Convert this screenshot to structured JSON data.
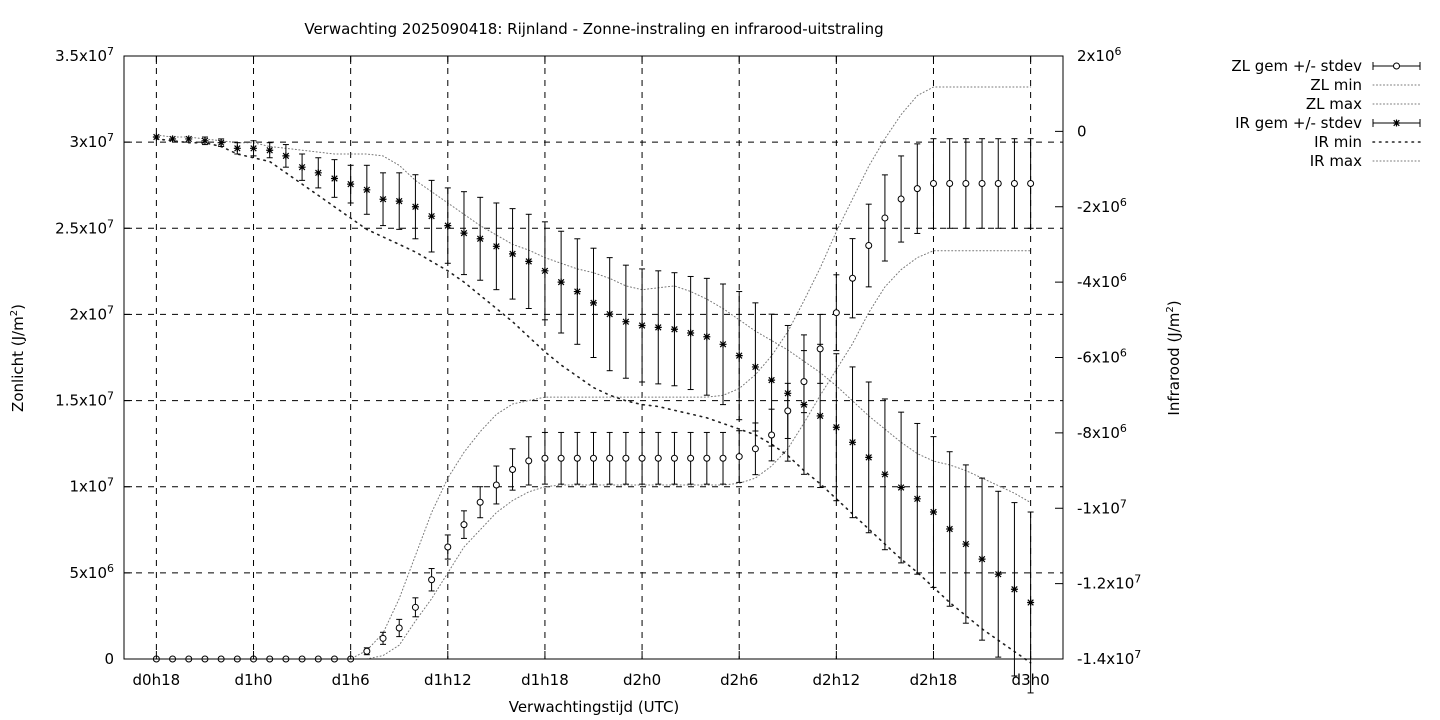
{
  "chart_data": {
    "type": "scatter",
    "title": "Verwachting 2025090418: Rijnland - Zonne-instraling en infrarood-uitstraling",
    "xlabel": "Verwachtingstijd (UTC)",
    "ylabel_left_text": "Zonlicht (J/m",
    "ylabel_left_sup": "2",
    "ylabel_left_close": ")",
    "ylabel_right_text": "Infrarood (J/m",
    "ylabel_right_sup": "2",
    "ylabel_right_close": ")",
    "x_range_hours": [
      -2,
      56
    ],
    "x_ticks": [
      {
        "value": 0,
        "label": "d0h18"
      },
      {
        "value": 6,
        "label": "d1h0"
      },
      {
        "value": 12,
        "label": "d1h6"
      },
      {
        "value": 18,
        "label": "d1h12"
      },
      {
        "value": 24,
        "label": "d1h18"
      },
      {
        "value": 30,
        "label": "d2h0"
      },
      {
        "value": 36,
        "label": "d2h6"
      },
      {
        "value": 42,
        "label": "d2h12"
      },
      {
        "value": 48,
        "label": "d2h18"
      },
      {
        "value": 54,
        "label": "d3h0"
      }
    ],
    "y_left_range": [
      0,
      35000000
    ],
    "y_left_ticks": [
      {
        "value": 0,
        "base": "0",
        "exp": ""
      },
      {
        "value": 5000000,
        "base": "5x10",
        "exp": "6"
      },
      {
        "value": 10000000,
        "base": "1x10",
        "exp": "7"
      },
      {
        "value": 15000000,
        "base": "1.5x10",
        "exp": "7"
      },
      {
        "value": 20000000,
        "base": "2x10",
        "exp": "7"
      },
      {
        "value": 25000000,
        "base": "2.5x10",
        "exp": "7"
      },
      {
        "value": 30000000,
        "base": "3x10",
        "exp": "7"
      },
      {
        "value": 35000000,
        "base": "3.5x10",
        "exp": "7"
      }
    ],
    "y_right_range": [
      -14000000,
      2000000
    ],
    "y_right_ticks": [
      {
        "value": -14000000,
        "base": "-1.4x10",
        "exp": "7"
      },
      {
        "value": -12000000,
        "base": "-1.2x10",
        "exp": "7"
      },
      {
        "value": -10000000,
        "base": "-1x10",
        "exp": "7"
      },
      {
        "value": -8000000,
        "base": "-8x10",
        "exp": "6"
      },
      {
        "value": -6000000,
        "base": "-6x10",
        "exp": "6"
      },
      {
        "value": -4000000,
        "base": "-4x10",
        "exp": "6"
      },
      {
        "value": -2000000,
        "base": "-2x10",
        "exp": "6"
      },
      {
        "value": 0,
        "base": "0",
        "exp": ""
      },
      {
        "value": 2000000,
        "base": "2x10",
        "exp": "6"
      }
    ],
    "grid": true,
    "legend_position": "outside-right",
    "legend": [
      {
        "label": "ZL gem +/- stdev",
        "style": "errorbar-circle"
      },
      {
        "label": "ZL min",
        "style": "dotted-fine"
      },
      {
        "label": "ZL max",
        "style": "dotted-fine"
      },
      {
        "label": "IR gem +/- stdev",
        "style": "errorbar-star"
      },
      {
        "label": "IR min",
        "style": "dotted-coarse"
      },
      {
        "label": "IR max",
        "style": "dotted-fine"
      }
    ],
    "x": [
      0,
      1,
      2,
      3,
      4,
      5,
      6,
      7,
      8,
      9,
      10,
      11,
      12,
      13,
      14,
      15,
      16,
      17,
      18,
      19,
      20,
      21,
      22,
      23,
      24,
      25,
      26,
      27,
      28,
      29,
      30,
      31,
      32,
      33,
      34,
      35,
      36,
      37,
      38,
      39,
      40,
      41,
      42,
      43,
      44,
      45,
      46,
      47,
      48,
      49,
      50,
      51,
      52,
      53,
      54
    ],
    "series": [
      {
        "name": "ZL gem +/- stdev",
        "axis": "left",
        "mean": [
          0,
          0,
          0,
          0,
          0,
          0,
          0,
          0,
          0,
          0,
          0,
          0,
          0,
          450000,
          1200000,
          1800000,
          3000000,
          4600000,
          6500000,
          7800000,
          9100000,
          10100000,
          11000000,
          11500000,
          11650000,
          11650000,
          11650000,
          11650000,
          11650000,
          11650000,
          11650000,
          11650000,
          11650000,
          11650000,
          11650000,
          11650000,
          11750000,
          12200000,
          13000000,
          14400000,
          16100000,
          18000000,
          20100000,
          22100000,
          24000000,
          25600000,
          26700000,
          27300000,
          27600000,
          27600000,
          27600000,
          27600000,
          27600000,
          27600000,
          27600000
        ],
        "stdev": [
          0,
          0,
          0,
          0,
          0,
          0,
          0,
          0,
          0,
          0,
          0,
          0,
          0,
          200000,
          350000,
          500000,
          550000,
          650000,
          700000,
          800000,
          900000,
          1100000,
          1200000,
          1400000,
          1500000,
          1500000,
          1500000,
          1500000,
          1500000,
          1500000,
          1500000,
          1500000,
          1500000,
          1500000,
          1500000,
          1500000,
          1500000,
          1500000,
          1500000,
          1600000,
          1800000,
          2000000,
          2200000,
          2300000,
          2400000,
          2500000,
          2500000,
          2600000,
          2600000,
          2600000,
          2600000,
          2600000,
          2600000,
          2600000,
          2600000
        ]
      },
      {
        "name": "ZL min",
        "axis": "left",
        "values": [
          0,
          0,
          0,
          0,
          0,
          0,
          0,
          0,
          0,
          0,
          0,
          0,
          0,
          0,
          200000,
          800000,
          2200000,
          3500000,
          5000000,
          6500000,
          7500000,
          8500000,
          9200000,
          9700000,
          10000000,
          10100000,
          10100000,
          10100000,
          10100000,
          10100000,
          10100000,
          10100000,
          10100000,
          10100000,
          10100000,
          10100000,
          10200000,
          10500000,
          11200000,
          12200000,
          13700000,
          15300000,
          16800000,
          18300000,
          20100000,
          21600000,
          22600000,
          23300000,
          23700000,
          23700000,
          23700000,
          23700000,
          23700000,
          23700000,
          23700000
        ]
      },
      {
        "name": "ZL max",
        "axis": "left",
        "values": [
          0,
          0,
          0,
          0,
          0,
          0,
          0,
          0,
          0,
          0,
          0,
          0,
          0,
          500000,
          1500000,
          3500000,
          6000000,
          8500000,
          10500000,
          12000000,
          13200000,
          14200000,
          14800000,
          15000000,
          15200000,
          15200000,
          15200000,
          15200000,
          15200000,
          15200000,
          15200000,
          15200000,
          15200000,
          15200000,
          15200000,
          15300000,
          15700000,
          16500000,
          17600000,
          19000000,
          20800000,
          22700000,
          24800000,
          26700000,
          28600000,
          30200000,
          31600000,
          32700000,
          33200000,
          33200000,
          33200000,
          33200000,
          33200000,
          33200000,
          33200000
        ]
      },
      {
        "name": "IR gem +/- stdev",
        "axis": "right",
        "mean": [
          -150000,
          -200000,
          -200000,
          -250000,
          -300000,
          -450000,
          -450000,
          -500000,
          -650000,
          -950000,
          -1100000,
          -1250000,
          -1400000,
          -1550000,
          -1800000,
          -1850000,
          -2000000,
          -2250000,
          -2500000,
          -2700000,
          -2850000,
          -3050000,
          -3250000,
          -3450000,
          -3700000,
          -4000000,
          -4250000,
          -4550000,
          -4850000,
          -5050000,
          -5150000,
          -5200000,
          -5250000,
          -5350000,
          -5450000,
          -5650000,
          -5950000,
          -6250000,
          -6600000,
          -6950000,
          -7250000,
          -7550000,
          -7850000,
          -8250000,
          -8650000,
          -9100000,
          -9450000,
          -9750000,
          -10100000,
          -10550000,
          -10950000,
          -11350000,
          -11750000,
          -12150000,
          -12500000
        ],
        "stdev": [
          0,
          0,
          0,
          100000,
          100000,
          150000,
          200000,
          200000,
          300000,
          350000,
          400000,
          500000,
          500000,
          650000,
          700000,
          750000,
          850000,
          950000,
          1000000,
          1100000,
          1100000,
          1150000,
          1200000,
          1250000,
          1300000,
          1350000,
          1400000,
          1450000,
          1500000,
          1500000,
          1500000,
          1500000,
          1500000,
          1500000,
          1550000,
          1600000,
          1700000,
          1700000,
          1750000,
          1800000,
          1850000,
          1900000,
          1950000,
          2000000,
          2000000,
          2000000,
          2000000,
          2000000,
          2000000,
          2050000,
          2100000,
          2150000,
          2200000,
          2300000,
          2400000
        ]
      },
      {
        "name": "IR min",
        "axis": "right",
        "values": [
          -200000,
          -250000,
          -300000,
          -300000,
          -400000,
          -600000,
          -700000,
          -800000,
          -1100000,
          -1400000,
          -1700000,
          -2000000,
          -2300000,
          -2600000,
          -2800000,
          -3000000,
          -3200000,
          -3450000,
          -3700000,
          -4000000,
          -4350000,
          -4700000,
          -5050000,
          -5450000,
          -5850000,
          -6200000,
          -6500000,
          -6800000,
          -7000000,
          -7150000,
          -7250000,
          -7300000,
          -7400000,
          -7500000,
          -7600000,
          -7750000,
          -7900000,
          -8050000,
          -8300000,
          -8600000,
          -9000000,
          -9350000,
          -9750000,
          -10150000,
          -10550000,
          -10950000,
          -11350000,
          -11700000,
          -12100000,
          -12500000,
          -12850000,
          -13200000,
          -13500000,
          -13800000,
          -14100000
        ]
      },
      {
        "name": "IR max",
        "axis": "right",
        "values": [
          -100000,
          -150000,
          -150000,
          -200000,
          -250000,
          -300000,
          -300000,
          -400000,
          -450000,
          -500000,
          -550000,
          -600000,
          -600000,
          -600000,
          -650000,
          -900000,
          -1300000,
          -1600000,
          -1900000,
          -2200000,
          -2500000,
          -2750000,
          -3000000,
          -3150000,
          -3350000,
          -3500000,
          -3650000,
          -3750000,
          -3900000,
          -4100000,
          -4200000,
          -4150000,
          -4100000,
          -4250000,
          -4450000,
          -4700000,
          -5000000,
          -5300000,
          -5550000,
          -5800000,
          -6100000,
          -6400000,
          -6750000,
          -7150000,
          -7550000,
          -7900000,
          -8250000,
          -8550000,
          -8750000,
          -8850000,
          -9000000,
          -9200000,
          -9400000,
          -9600000,
          -9850000
        ]
      }
    ]
  }
}
